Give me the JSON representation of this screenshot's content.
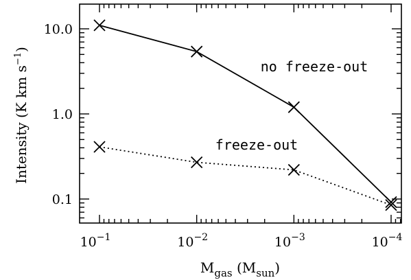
{
  "chart_data": {
    "type": "line",
    "title": "",
    "xlabel_main": "M",
    "xlabel_sub": "gas",
    "xlabel_paren_open": "(M",
    "xlabel_unit_sub": "sun",
    "xlabel_paren_close": ")",
    "ylabel_main": "Intensity (K km s",
    "ylabel_sup": "−1",
    "ylabel_close": ")",
    "x_scale": "log",
    "x_reversed": true,
    "y_scale": "log",
    "xlim": [
      0.1,
      0.0001
    ],
    "ylim": [
      0.05,
      20
    ],
    "x_ticks": [
      {
        "value": 0.1,
        "base": "10",
        "exp": "−1"
      },
      {
        "value": 0.01,
        "base": "10",
        "exp": "−2"
      },
      {
        "value": 0.001,
        "base": "10",
        "exp": "−3"
      },
      {
        "value": 0.0001,
        "base": "10",
        "exp": "−4"
      }
    ],
    "y_ticks": [
      {
        "value": 0.1,
        "label": "0.1"
      },
      {
        "value": 1.0,
        "label": "1.0"
      },
      {
        "value": 10.0,
        "label": "10.0"
      }
    ],
    "marker": "x",
    "grid": false,
    "legend": "none",
    "x": [
      0.1,
      0.01,
      0.001,
      0.0001
    ],
    "series": [
      {
        "values": [
          11.0,
          5.4,
          1.2,
          0.092
        ],
        "line_style": "solid",
        "color": "#000000"
      },
      {
        "values": [
          0.41,
          0.27,
          0.22,
          0.085
        ],
        "line_style": "dotted",
        "color": "#000000"
      }
    ],
    "annotations": [
      {
        "text": "no freeze-out"
      },
      {
        "text": "freeze-out"
      }
    ]
  }
}
